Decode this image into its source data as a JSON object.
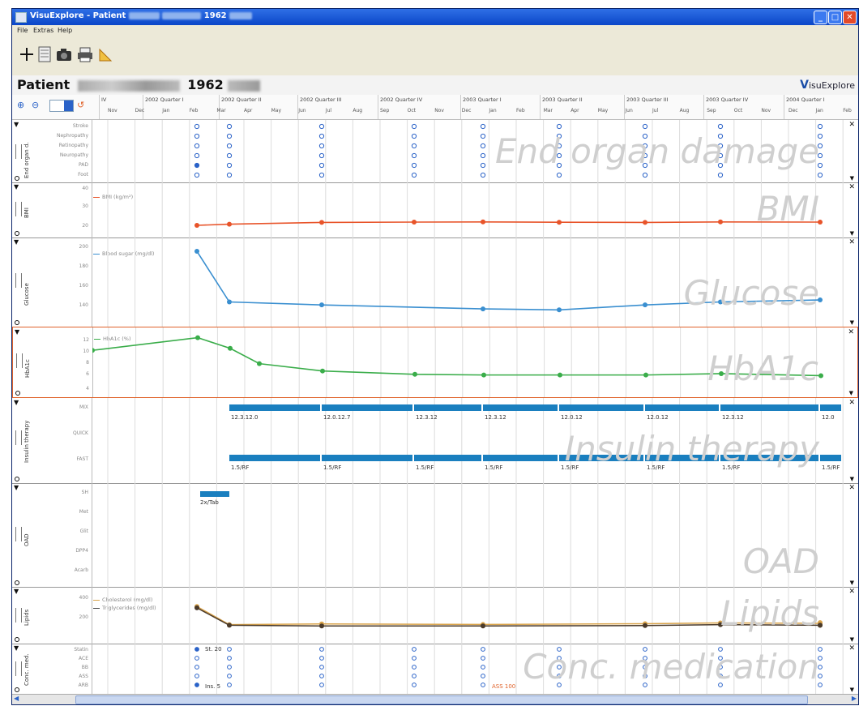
{
  "window": {
    "title": "VisuExplore - Patient",
    "title_suffix": "1962"
  },
  "menu": [
    "File",
    "Extras",
    "Help"
  ],
  "toolbar": {
    "icons": [
      "crosshair-icon",
      "calendar-icon",
      "camera-icon",
      "printer-icon",
      "ruler-icon"
    ]
  },
  "header": {
    "patient_label": "Patient",
    "patient_year": "1962",
    "logo_v": "V",
    "logo_rest": "isuExplore"
  },
  "timeline": {
    "periods": [
      "IV",
      "2002 Quarter I",
      "2002 Quarter II",
      "2002 Quarter III",
      "2002 Quarter IV",
      "2003 Quarter I",
      "2003 Quarter II",
      "2003 Quarter III",
      "2003 Quarter IV",
      "2004 Quarter I"
    ],
    "months": [
      "Nov",
      "Dec",
      "Jan",
      "Feb",
      "Mar",
      "Apr",
      "May",
      "Jun",
      "Jul",
      "Aug",
      "Sep",
      "Oct",
      "Nov",
      "Dec",
      "Jan",
      "Feb",
      "Mar",
      "Apr",
      "May",
      "Jun",
      "Jul",
      "Aug",
      "Sep",
      "Oct",
      "Nov",
      "Dec",
      "Jan",
      "Feb"
    ]
  },
  "panels": {
    "end_organ": {
      "watermark": "End organ damage",
      "side": "End organ d.",
      "labels": [
        "Stroke",
        "Nephropathy",
        "Retinopathy",
        "Neuropathy",
        "PAD",
        "Foot"
      ]
    },
    "bmi": {
      "watermark": "BMI",
      "side": "BMI",
      "legend": "BMI (kg/m²)",
      "ticks": [
        "40",
        "30",
        "20"
      ]
    },
    "glucose": {
      "watermark": "Glucose",
      "side": "Glucose",
      "legend": "Blood sugar (mg/dl)",
      "ticks": [
        "200",
        "180",
        "160",
        "140"
      ]
    },
    "hba1c": {
      "watermark": "HbA1c",
      "side": "HbA1c",
      "legend": "HbA1c (%)",
      "ticks": [
        "12",
        "10",
        "8",
        "6",
        "4"
      ]
    },
    "insulin": {
      "watermark": "Insulin therapy",
      "side": "Insulin therapy",
      "labels": [
        "MIX",
        "QUICK",
        "FAST"
      ],
      "bar_labels_top": [
        "12.3.12.0",
        "12.0.12.7",
        "12.3.12",
        "12.3.12",
        "12.0.12",
        "12.0.12",
        "12.3.12",
        "12.0"
      ],
      "bar_labels_bottom": [
        "1.5/RF",
        "1.5/RF",
        "1.5/RF",
        "1.5/RF",
        "1.5/RF",
        "1.5/RF",
        "1.5/RF",
        "1.5/RF"
      ]
    },
    "oad": {
      "watermark": "OAD",
      "side": "OAD",
      "labels": [
        "SH",
        "Met",
        "Glit",
        "DPP4",
        "Acarb"
      ],
      "bar_label": "2x/Tab"
    },
    "lipids": {
      "watermark": "Lipids",
      "side": "Lipids",
      "legend1": "Cholesterol (mg/dl)",
      "legend2": "Triglycerides (mg/dl)",
      "ticks": [
        "400",
        "200"
      ]
    },
    "conc": {
      "watermark": "Conc. medication",
      "side": "Conc. med.",
      "labels": [
        "Statin",
        "ACE",
        "BB",
        "ASS",
        "ARB"
      ],
      "annotation1": "St. 20",
      "annotation2": "Ins. 5",
      "annotation3": "ASS 100"
    }
  },
  "colors": {
    "bmi": "#e8542a",
    "glucose": "#3a8fd0",
    "hba1c": "#3aad4a",
    "insulin": "#1a7fbf",
    "lipids": "#d9a34a",
    "selected_border": "#e0632b"
  },
  "chart_data": [
    {
      "type": "line",
      "series": [
        {
          "values_y": [
            20.5,
            21.2,
            22.3,
            22.5,
            22.6,
            22.4,
            22.3,
            22.6,
            22.5
          ]
        }
      ],
      "x_positions": [
        228,
        268,
        382,
        496,
        581,
        675,
        781,
        874,
        997
      ],
      "ylim": [
        15,
        45
      ]
    },
    {
      "type": "line",
      "series": [
        {
          "values_y": [
            201,
            150,
            147,
            143,
            142,
            147,
            150,
            152
          ]
        }
      ],
      "x_positions": [
        228,
        268,
        382,
        581,
        675,
        781,
        874,
        997
      ],
      "ylim": [
        130,
        210
      ]
    },
    {
      "type": "line",
      "series": [
        {
          "values_y": [
            10.3,
            12.2,
            10.6,
            8.3,
            7.2,
            6.7,
            6.6,
            6.6,
            6.6,
            6.8,
            6.5
          ]
        }
      ],
      "x_positions": [
        98,
        228,
        268,
        304,
        382,
        496,
        581,
        675,
        781,
        874,
        997
      ],
      "ylim": [
        4,
        13
      ]
    },
    {
      "type": "line",
      "series": [
        {
          "values_y": [
            340,
            205,
            210,
            206,
            212,
            218,
            215,
            220
          ]
        },
        {
          "values_y": [
            330,
            200,
            195,
            195,
            198,
            205,
            200,
            200
          ]
        }
      ],
      "x_positions": [
        228,
        268,
        382,
        581,
        781,
        874,
        997,
        997
      ],
      "ylim": [
        100,
        450
      ]
    }
  ]
}
